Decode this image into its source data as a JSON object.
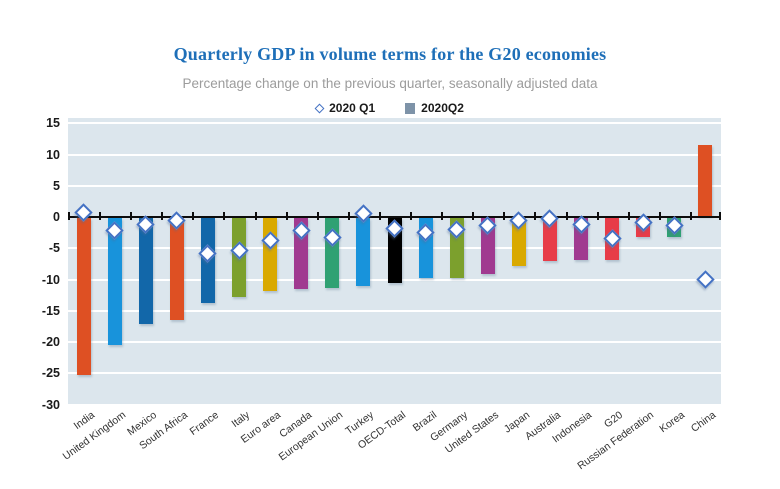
{
  "header": {
    "title": "Quarterly GDP in volume terms for the G20 economies",
    "subtitle": "Percentage change on the previous quarter, seasonally adjusted data",
    "title_color": "#1E6FB8",
    "subtitle_color": "#9C9C9C"
  },
  "legend": {
    "q1_label": "2020 Q1",
    "q2_label": "2020Q2",
    "q1_marker_color": "#4472C4",
    "q2_marker_color": "#7E93A8"
  },
  "chart_data": {
    "type": "bar",
    "title": "Quarterly GDP in volume terms for the G20 economies",
    "subtitle": "Percentage change on the previous quarter, seasonally adjusted data",
    "xlabel": "",
    "ylabel": "",
    "ylim": [
      -30,
      15.9
    ],
    "yticks": [
      15,
      10,
      5,
      0,
      -5,
      -10,
      -15,
      -20,
      -25,
      -30
    ],
    "grid": true,
    "plot_bg": "#DCE6ED",
    "legend_position": "top",
    "categories": [
      "India",
      "United Kingdom",
      "Mexico",
      "South Africa",
      "France",
      "Italy",
      "Euro area",
      "Canada",
      "European Union",
      "Turkey",
      "OECD-Total",
      "Brazil",
      "Germany",
      "United States",
      "Japan",
      "Australia",
      "Indonesia",
      "G20",
      "Russian Federation",
      "Korea",
      "China"
    ],
    "series": [
      {
        "name": "2020 Q1",
        "style": "diamond-marker",
        "values": [
          0.7,
          -2.2,
          -1.2,
          -0.6,
          -5.9,
          -5.4,
          -3.7,
          -2.1,
          -3.3,
          0.6,
          -1.8,
          -2.5,
          -2.0,
          -1.3,
          -0.6,
          -0.3,
          -1.2,
          -3.4,
          -0.8,
          -1.3,
          -10.0
        ]
      },
      {
        "name": "2020Q2",
        "style": "bar",
        "values": [
          -25.2,
          -20.4,
          -17.1,
          -16.4,
          -13.8,
          -12.8,
          -11.8,
          -11.5,
          -11.4,
          -11.0,
          -10.6,
          -9.7,
          -9.7,
          -9.1,
          -7.9,
          -7.0,
          -6.9,
          -6.9,
          -3.2,
          -3.2,
          11.5
        ]
      }
    ],
    "bar_colors": [
      "#DE5023",
      "#1893DB",
      "#1267A9",
      "#DE5023",
      "#1267A9",
      "#7CA02D",
      "#D9A900",
      "#A03A90",
      "#30A173",
      "#1893DB",
      "#000000",
      "#1893DB",
      "#7CA02D",
      "#A03A90",
      "#D9A900",
      "#E73C48",
      "#A03A90",
      "#E73C48",
      "#E73C48",
      "#30A173",
      "#DE5023"
    ]
  }
}
